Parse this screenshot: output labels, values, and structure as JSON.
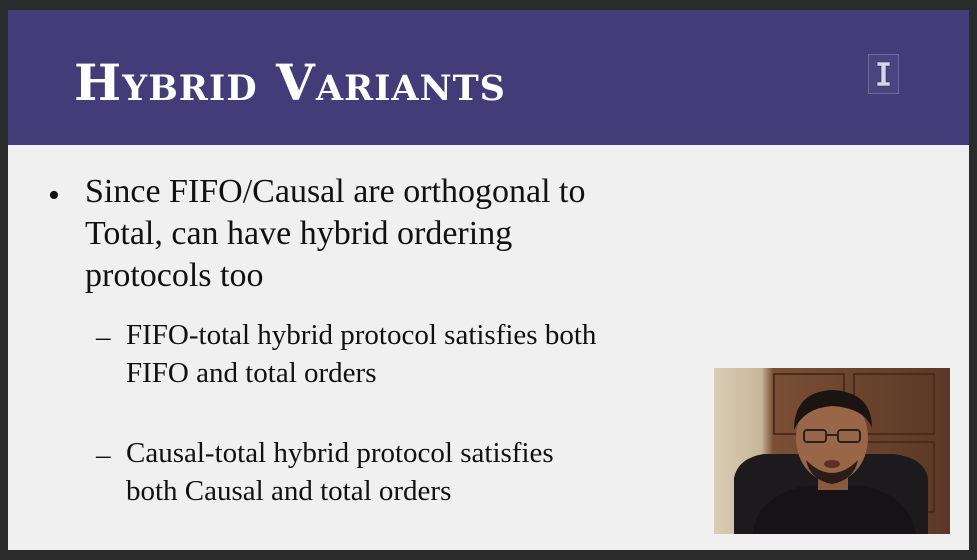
{
  "slide": {
    "title": "Hybrid Variants",
    "logo_letter": "I",
    "bullets": [
      {
        "text": "Since FIFO/Causal are orthogonal to Total, can have hybrid ordering protocols too",
        "marker": "•",
        "sub_bullets": [
          {
            "marker": "–",
            "text": "FIFO-total hybrid protocol satisfies both FIFO and total orders"
          },
          {
            "marker": "–",
            "text": "Causal-total hybrid protocol satisfies both Causal and total orders"
          }
        ]
      }
    ]
  },
  "colors": {
    "header_bg": "#433c78",
    "slide_bg": "#f0f0f0",
    "title_text": "#ffffff",
    "body_text": "#111111",
    "frame_bg": "#2b2b2b"
  },
  "video": {
    "icon": "presenter-webcam"
  }
}
